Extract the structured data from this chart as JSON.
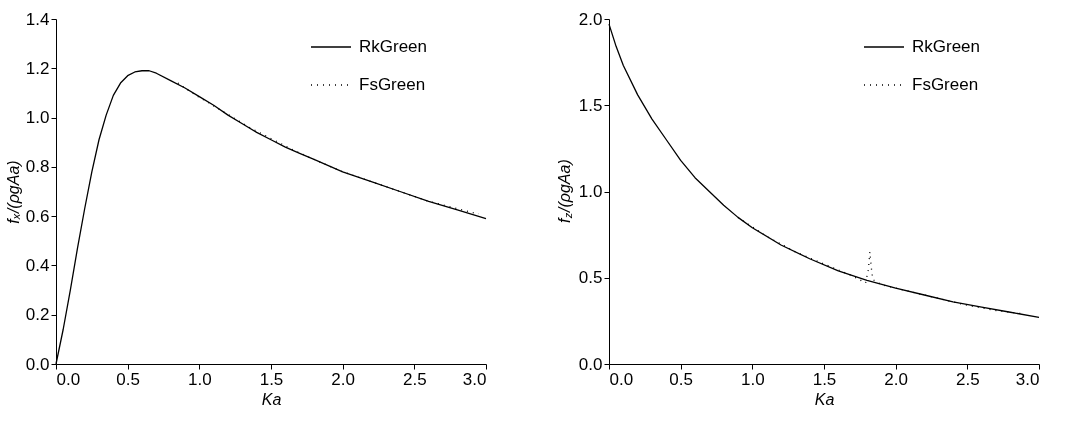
{
  "chart_data": [
    {
      "type": "line",
      "xlabel": "Ka",
      "ylabel": "fₓ/(ρgAa)",
      "xlim": [
        0,
        3
      ],
      "xticks": [
        {
          "value": 0,
          "label": "0.0"
        },
        0.5,
        {
          "value": 1,
          "label": "1.0"
        },
        1.5,
        {
          "value": 2,
          "label": "2.0"
        },
        2.5,
        {
          "value": 3,
          "label": "3.0"
        }
      ],
      "ylim": [
        0,
        1.4
      ],
      "yticks": [
        {
          "value": 0,
          "label": "0.0"
        },
        0.2,
        0.4,
        0.6,
        0.8,
        {
          "value": 1,
          "label": "1.0"
        },
        1.2,
        1.4
      ],
      "legend": "top right",
      "grid": false,
      "marker": "none",
      "series": [
        {
          "name": "RkGreen",
          "color": "#000000",
          "line_style": "solid",
          "x": [
            0,
            0.05,
            0.1,
            0.15,
            0.2,
            0.25,
            0.3,
            0.35,
            0.4,
            0.45,
            0.5,
            0.55,
            0.6,
            0.65,
            0.7,
            0.8,
            0.9,
            1.0,
            1.1,
            1.2,
            1.3,
            1.4,
            1.5,
            1.6,
            1.7,
            1.8,
            1.9,
            2.0,
            2.2,
            2.4,
            2.6,
            2.8,
            3.0
          ],
          "values": [
            0,
            0.14,
            0.3,
            0.47,
            0.63,
            0.78,
            0.91,
            1.01,
            1.09,
            1.14,
            1.17,
            1.185,
            1.19,
            1.19,
            1.18,
            1.15,
            1.12,
            1.085,
            1.05,
            1.01,
            0.975,
            0.94,
            0.91,
            0.88,
            0.855,
            0.83,
            0.805,
            0.78,
            0.74,
            0.7,
            0.66,
            0.625,
            0.59
          ]
        },
        {
          "name": "FsGreen",
          "color": "#000000",
          "line_style": "dotted",
          "x": [
            0.85,
            0.95,
            1.05,
            1.15,
            1.25,
            1.35,
            1.45,
            1.55,
            1.65,
            1.8,
            2.0,
            2.2,
            2.4,
            2.5,
            2.6,
            2.7,
            2.8,
            2.9,
            2.95
          ],
          "values": [
            1.14,
            1.1,
            1.065,
            1.03,
            0.995,
            0.96,
            0.93,
            0.9,
            0.87,
            0.83,
            0.78,
            0.74,
            0.7,
            0.68,
            0.66,
            0.645,
            0.63,
            0.615,
            0.61
          ]
        }
      ]
    },
    {
      "type": "line",
      "xlabel": "Ka",
      "ylabel": "f$_{z}$/(ρgAa)",
      "xlim": [
        0,
        3
      ],
      "xticks": [
        {
          "value": 0,
          "label": "0.0"
        },
        0.5,
        {
          "value": 1,
          "label": "1.0"
        },
        1.5,
        {
          "value": 2,
          "label": "2.0"
        },
        2.5,
        {
          "value": 3,
          "label": "3.0"
        }
      ],
      "ylim": [
        0,
        2
      ],
      "yticks": [
        {
          "value": 0,
          "label": "0.0"
        },
        0.5,
        {
          "value": 1,
          "label": "1.0"
        },
        1.5,
        {
          "value": 2,
          "label": "2.0"
        }
      ],
      "legend": "top right",
      "grid": false,
      "marker": "none",
      "series": [
        {
          "name": "RkGreen",
          "color": "#000000",
          "line_style": "solid",
          "x": [
            0,
            0.05,
            0.1,
            0.2,
            0.3,
            0.4,
            0.5,
            0.6,
            0.7,
            0.8,
            0.9,
            1.0,
            1.2,
            1.4,
            1.6,
            1.8,
            2.0,
            2.2,
            2.4,
            2.6,
            2.8,
            3.0
          ],
          "values": [
            1.97,
            1.84,
            1.73,
            1.56,
            1.42,
            1.3,
            1.18,
            1.08,
            1.0,
            0.92,
            0.85,
            0.79,
            0.69,
            0.61,
            0.54,
            0.485,
            0.44,
            0.4,
            0.36,
            0.33,
            0.3,
            0.27
          ]
        },
        {
          "name": "FsGreen",
          "color": "#000000",
          "line_style": "dotted",
          "x": [
            0.9,
            1.1,
            1.3,
            1.5,
            1.7,
            1.79,
            1.81,
            1.82,
            1.83,
            1.84,
            1.9,
            2.1,
            2.3,
            2.5,
            2.7,
            2.9
          ],
          "values": [
            0.85,
            0.74,
            0.65,
            0.58,
            0.51,
            0.47,
            0.55,
            0.65,
            0.56,
            0.49,
            0.46,
            0.42,
            0.38,
            0.34,
            0.31,
            0.29
          ]
        }
      ]
    }
  ]
}
